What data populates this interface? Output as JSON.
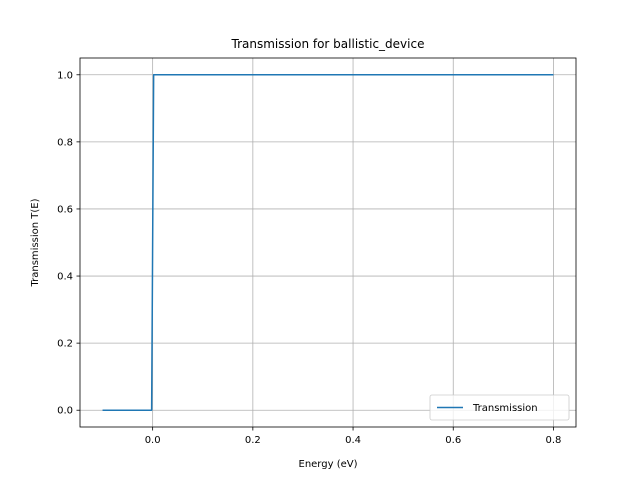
{
  "chart_data": {
    "type": "line",
    "title": "Transmission for ballistic_device",
    "xlabel": "Energy (eV)",
    "ylabel": "Transmission T(E)",
    "xlim": [
      -0.145,
      0.845
    ],
    "ylim": [
      -0.05,
      1.05
    ],
    "xticks": [
      0.0,
      0.2,
      0.4,
      0.6,
      0.8
    ],
    "xtick_labels": [
      "0.0",
      "0.2",
      "0.4",
      "0.6",
      "0.8"
    ],
    "yticks": [
      0.0,
      0.2,
      0.4,
      0.6,
      0.8,
      1.0
    ],
    "ytick_labels": [
      "0.0",
      "0.2",
      "0.4",
      "0.6",
      "0.8",
      "1.0"
    ],
    "grid": true,
    "legend_position": "lower-right",
    "series": [
      {
        "name": "Transmission",
        "color": "#1f77b4",
        "x": [
          -0.1,
          -0.002,
          0.002,
          0.8
        ],
        "y": [
          0.0,
          0.0,
          1.0,
          1.0
        ]
      }
    ]
  }
}
